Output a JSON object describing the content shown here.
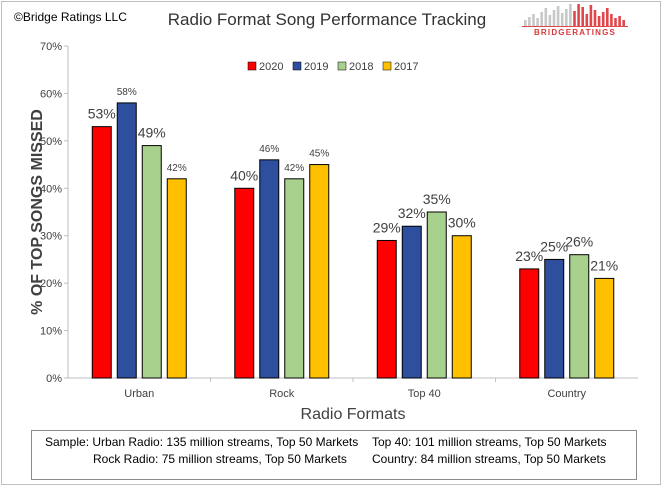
{
  "header": {
    "copyright": "©Bridge Ratings LLC",
    "title": "Radio Format Song Performance Tracking",
    "logo_text": "BRIDGERATINGS"
  },
  "footer": {
    "line1_left": "Sample: Urban Radio: 135 million streams, Top 50 Markets",
    "line1_right": "Top 40: 101 million streams, Top 50 Markets",
    "line2_left": "Rock Radio: 75 million streams, Top 50 Markets",
    "line2_right": "Country: 84 million streams, Top 50 Markets"
  },
  "chart_data": {
    "type": "bar",
    "title": "Radio Format Song Performance Tracking",
    "xlabel": "Radio Formats",
    "ylabel": "% OF TOP SONGS MISSED",
    "categories": [
      "Urban",
      "Rock",
      "Top 40",
      "Country"
    ],
    "ylim": [
      0,
      70
    ],
    "yticks": [
      "0%",
      "10%",
      "20%",
      "30%",
      "40%",
      "50%",
      "60%",
      "70%"
    ],
    "grid": false,
    "legend_position": "top-center",
    "series": [
      {
        "name": "2020",
        "color": "#ff0000",
        "values": [
          53,
          40,
          29,
          23
        ],
        "labels": [
          "53%",
          "40%",
          "29%",
          "23%"
        ]
      },
      {
        "name": "2019",
        "color": "#2e4e9e",
        "values": [
          58,
          46,
          32,
          25
        ],
        "labels": [
          "58%",
          "46%",
          "32%",
          "25%"
        ]
      },
      {
        "name": "2018",
        "color": "#a9d18e",
        "values": [
          49,
          42,
          35,
          26
        ],
        "labels": [
          "49%",
          "42%",
          "35%",
          "26%"
        ]
      },
      {
        "name": "2017",
        "color": "#ffc000",
        "values": [
          42,
          45,
          30,
          21
        ],
        "labels": [
          "42%",
          "45%",
          "30%",
          "21%"
        ]
      }
    ],
    "label_large": [
      [
        true,
        false,
        true,
        false
      ],
      [
        true,
        false,
        false,
        false
      ],
      [
        true,
        true,
        true,
        true
      ],
      [
        true,
        true,
        true,
        true
      ]
    ]
  }
}
